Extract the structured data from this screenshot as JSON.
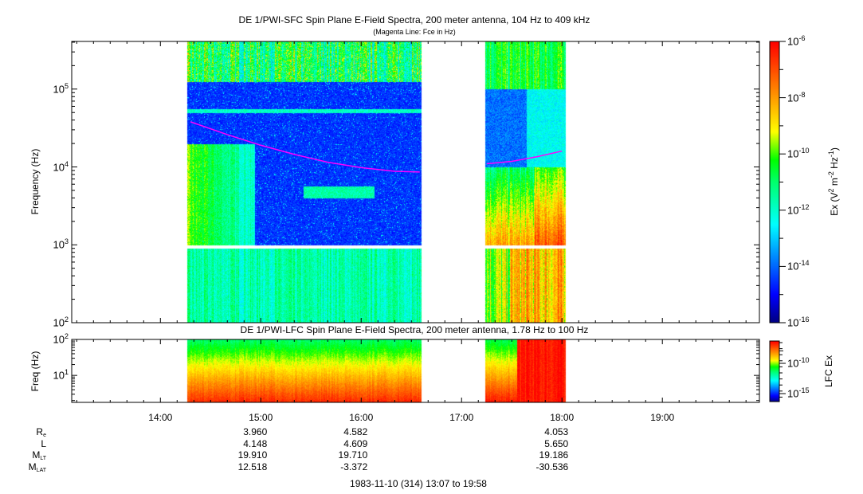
{
  "chart_data": [
    {
      "type": "heatmap",
      "title": "DE 1/PWI-SFC  Spin Plane E-Field Spectra, 200 meter antenna, 104 Hz to 409 kHz",
      "subtitle": "(Magenta Line: Fce in Hz)",
      "ylabel": "Frequency (Hz)",
      "yscale": "log",
      "ylim": [
        100,
        409000
      ],
      "yticks": [
        {
          "v": 100,
          "e": "2"
        },
        {
          "v": 1000,
          "e": "3"
        },
        {
          "v": 10000,
          "e": "4"
        },
        {
          "v": 100000,
          "e": "5"
        }
      ],
      "xlim": [
        "13:07",
        "19:58"
      ],
      "xticks": [
        "14:00",
        "15:00",
        "16:00",
        "17:00",
        "18:00",
        "19:00"
      ],
      "data_segments": [
        [
          "14:16",
          "16:36"
        ],
        [
          "17:14",
          "18:02"
        ]
      ],
      "frequency_gap_hz": [
        900,
        1000
      ],
      "colorbar": {
        "label": "Ex (V2 m-2 Hz-1)",
        "label_parts": [
          "Ex (V",
          "2",
          " m",
          "-2",
          " Hz",
          "-1",
          ")"
        ],
        "scale": "log",
        "range": [
          1e-16,
          1e-06
        ],
        "ticks": [
          {
            "e": "-6"
          },
          {
            "e": "-8"
          },
          {
            "e": "-10"
          },
          {
            "e": "-12"
          },
          {
            "e": "-14"
          },
          {
            "e": "-16"
          }
        ],
        "colormap": "rainbow"
      },
      "fce_line": {
        "color": "#ff00ff",
        "segments": [
          [
            [
              "14:18",
              38000
            ],
            [
              "14:40",
              26000
            ],
            [
              "15:00",
              19000
            ],
            [
              "15:20",
              14500
            ],
            [
              "15:40",
              11500
            ],
            [
              "16:00",
              9800
            ],
            [
              "16:20",
              8800
            ],
            [
              "16:35",
              8600
            ]
          ],
          [
            [
              "17:15",
              11000
            ],
            [
              "17:30",
              11800
            ],
            [
              "17:45",
              13500
            ],
            [
              "18:00",
              16000
            ]
          ]
        ]
      }
    },
    {
      "type": "heatmap",
      "title": "DE 1/PWI-LFC  Spin Plane E-Field Spectra, 200 meter antenna, 1.78 Hz to 100 Hz",
      "ylabel": "Freq (Hz)",
      "yscale": "log",
      "ylim": [
        1.78,
        100
      ],
      "yticks": [
        {
          "v": 10,
          "e": "1"
        },
        {
          "v": 100,
          "e": "2"
        }
      ],
      "data_segments": [
        [
          "14:16",
          "16:36"
        ],
        [
          "17:14",
          "18:02"
        ]
      ],
      "colorbar": {
        "label": "LFC Ex",
        "scale": "log",
        "ticks": [
          {
            "e": "-10"
          },
          {
            "e": "-15"
          }
        ],
        "colormap": "rainbow"
      }
    }
  ],
  "ephemeris": {
    "rows": [
      {
        "label": "R",
        "sub": "e",
        "values": [
          "3.960",
          "4.582",
          "4.053"
        ]
      },
      {
        "label": "L",
        "sub": "",
        "values": [
          "4.148",
          "4.609",
          "5.650"
        ]
      },
      {
        "label": "M",
        "sub": "LT",
        "values": [
          "19.910",
          "19.710",
          "19.186"
        ]
      },
      {
        "label": "M",
        "sub": "LAT",
        "values": [
          "12.518",
          "-3.372",
          "-30.536"
        ]
      }
    ],
    "times": [
      "15:00",
      "16:00",
      "18:00"
    ]
  },
  "footer": "1983-11-10 (314) 13:07 to 19:58"
}
